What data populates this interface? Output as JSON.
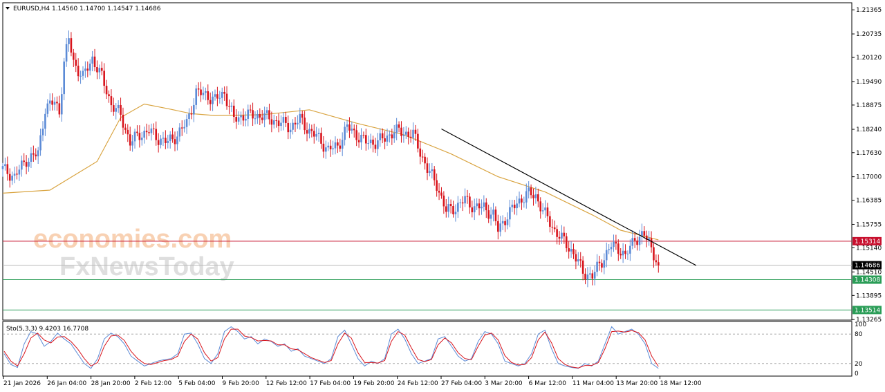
{
  "header": {
    "dropdown_icon": "triangle-down-icon",
    "info": "EURUSD,H4  1.14560 1.14700 1.14547 1.14686"
  },
  "watermark": {
    "line1": "economies.com",
    "line2": "FxNewsToday"
  },
  "colors": {
    "bull": "#5b8ad6",
    "bear": "#d8141c",
    "ma": "#d9a441",
    "resistance_line": "#c8102e",
    "support_line": "#2a9d57",
    "current_price": "#000000",
    "stoch_main": "#5b8ad6",
    "stoch_signal": "#d8141c"
  },
  "chart_data": [
    {
      "type": "candlestick",
      "symbol": "EURUSD",
      "timeframe": "H4",
      "ylim": [
        1.1325,
        1.2155
      ],
      "price_labels": [
        "1.21365",
        "1.20735",
        "1.20120",
        "1.19490",
        "1.18875",
        "1.18240",
        "1.17630",
        "1.17000",
        "1.16385",
        "1.15755",
        "1.15140",
        "1.14510",
        "1.13895",
        "1.13265"
      ],
      "x_labels": [
        "21 Jan 2026",
        "26 Jan 04:00",
        "28 Jan 20:00",
        "2 Feb 12:00",
        "5 Feb 04:00",
        "9 Feb 20:00",
        "12 Feb 12:00",
        "17 Feb 04:00",
        "19 Feb 20:00",
        "24 Feb 12:00",
        "27 Feb 04:00",
        "3 Mar 20:00",
        "6 Mar 12:00",
        "11 Mar 04:00",
        "13 Mar 20:00",
        "18 Mar 12:00"
      ],
      "close_path": [
        [
          0,
          1.172
        ],
        [
          5,
          1.17
        ],
        [
          10,
          1.1745
        ],
        [
          15,
          1.176
        ],
        [
          18,
          1.188
        ],
        [
          22,
          1.1895
        ],
        [
          24,
          1.187
        ],
        [
          26,
          1.2
        ],
        [
          28,
          1.206
        ],
        [
          30,
          1.2
        ],
        [
          34,
          1.196
        ],
        [
          38,
          1.201
        ],
        [
          42,
          1.196
        ],
        [
          46,
          1.189
        ],
        [
          50,
          1.186
        ],
        [
          54,
          1.179
        ],
        [
          58,
          1.181
        ],
        [
          62,
          1.182
        ],
        [
          66,
          1.18
        ],
        [
          70,
          1.179
        ],
        [
          74,
          1.181
        ],
        [
          78,
          1.184
        ],
        [
          82,
          1.192
        ],
        [
          86,
          1.1915
        ],
        [
          90,
          1.19
        ],
        [
          94,
          1.192
        ],
        [
          98,
          1.185
        ],
        [
          102,
          1.186
        ],
        [
          106,
          1.186
        ],
        [
          110,
          1.186
        ],
        [
          114,
          1.185
        ],
        [
          118,
          1.184
        ],
        [
          122,
          1.183
        ],
        [
          126,
          1.185
        ],
        [
          130,
          1.182
        ],
        [
          134,
          1.18
        ],
        [
          138,
          1.177
        ],
        [
          142,
          1.178
        ],
        [
          146,
          1.183
        ],
        [
          150,
          1.181
        ],
        [
          154,
          1.179
        ],
        [
          158,
          1.179
        ],
        [
          162,
          1.18
        ],
        [
          166,
          1.182
        ],
        [
          170,
          1.1815
        ],
        [
          174,
          1.181
        ],
        [
          176,
          1.178
        ],
        [
          180,
          1.172
        ],
        [
          184,
          1.168
        ],
        [
          188,
          1.161
        ],
        [
          192,
          1.162
        ],
        [
          196,
          1.164
        ],
        [
          200,
          1.162
        ],
        [
          204,
          1.162
        ],
        [
          208,
          1.16
        ],
        [
          210,
          1.156
        ],
        [
          214,
          1.16
        ],
        [
          218,
          1.163
        ],
        [
          222,
          1.1655
        ],
        [
          226,
          1.165
        ],
        [
          230,
          1.16
        ],
        [
          234,
          1.156
        ],
        [
          238,
          1.153
        ],
        [
          242,
          1.15
        ],
        [
          246,
          1.145
        ],
        [
          250,
          1.144
        ],
        [
          254,
          1.148
        ],
        [
          258,
          1.152
        ],
        [
          262,
          1.151
        ],
        [
          264,
          1.149
        ],
        [
          268,
          1.154
        ],
        [
          272,
          1.1545
        ],
        [
          274,
          1.153
        ],
        [
          276,
          1.15
        ],
        [
          278,
          1.1468
        ]
      ],
      "moving_average": [
        [
          0,
          1.1657
        ],
        [
          20,
          1.1665
        ],
        [
          40,
          1.174
        ],
        [
          50,
          1.1855
        ],
        [
          60,
          1.189
        ],
        [
          70,
          1.1878
        ],
        [
          80,
          1.1865
        ],
        [
          90,
          1.186
        ],
        [
          110,
          1.1862
        ],
        [
          130,
          1.1875
        ],
        [
          150,
          1.184
        ],
        [
          170,
          1.181
        ],
        [
          190,
          1.176
        ],
        [
          210,
          1.17
        ],
        [
          230,
          1.166
        ],
        [
          250,
          1.16
        ],
        [
          262,
          1.156
        ],
        [
          278,
          1.1535
        ]
      ],
      "trendline": [
        [
          186,
          1.1825
        ],
        [
          294,
          1.1468
        ]
      ],
      "horizontal_levels": [
        {
          "name": "resistance",
          "value": 1.15314,
          "label": "1.15314"
        },
        {
          "name": "current",
          "value": 1.14686,
          "label": "1.14686"
        },
        {
          "name": "support-1",
          "value": 1.14308,
          "label": "1.14308"
        },
        {
          "name": "support-2",
          "value": 1.13514,
          "label": "1.13514"
        }
      ],
      "x_range": [
        0,
        360
      ]
    },
    {
      "type": "line",
      "name": "Sto(5,3,3) 9.4203 16.7708",
      "ylim": [
        0,
        100
      ],
      "levels": [
        80,
        20
      ],
      "y_labels": [
        "100",
        "80",
        "20",
        "0"
      ],
      "series": [
        {
          "values": [
            40,
            18,
            12,
            60,
            85,
            80,
            55,
            65,
            82,
            70,
            60,
            40,
            20,
            10,
            30,
            70,
            82,
            75,
            60,
            35,
            25,
            15,
            20,
            25,
            28,
            30,
            40,
            80,
            82,
            60,
            30,
            20,
            40,
            85,
            95,
            85,
            70,
            75,
            60,
            70,
            65,
            55,
            60,
            45,
            50,
            35,
            30,
            25,
            20,
            30,
            75,
            88,
            60,
            30,
            15,
            25,
            20,
            30,
            80,
            90,
            70,
            40,
            20,
            25,
            30,
            70,
            75,
            55,
            35,
            25,
            30,
            65,
            85,
            80,
            60,
            25,
            20,
            15,
            20,
            40,
            80,
            88,
            50,
            20,
            15,
            12,
            10,
            20,
            15,
            25,
            60,
            95,
            80,
            85,
            90,
            80,
            60,
            20,
            10
          ]
        },
        {
          "values": [
            45,
            25,
            15,
            40,
            72,
            82,
            68,
            62,
            74,
            75,
            65,
            50,
            30,
            15,
            22,
            55,
            76,
            78,
            67,
            45,
            30,
            20,
            18,
            22,
            26,
            28,
            35,
            65,
            80,
            70,
            42,
            25,
            32,
            70,
            90,
            90,
            76,
            73,
            66,
            67,
            66,
            58,
            58,
            50,
            48,
            40,
            32,
            27,
            22,
            26,
            60,
            82,
            72,
            42,
            22,
            22,
            21,
            26,
            65,
            85,
            78,
            52,
            28,
            24,
            28,
            58,
            72,
            62,
            42,
            30,
            28,
            55,
            78,
            82,
            68,
            36,
            22,
            17,
            18,
            32,
            68,
            84,
            62,
            30,
            18,
            13,
            11,
            16,
            16,
            22,
            50,
            85,
            86,
            84,
            87,
            83,
            68,
            35,
            14
          ]
        }
      ]
    }
  ]
}
